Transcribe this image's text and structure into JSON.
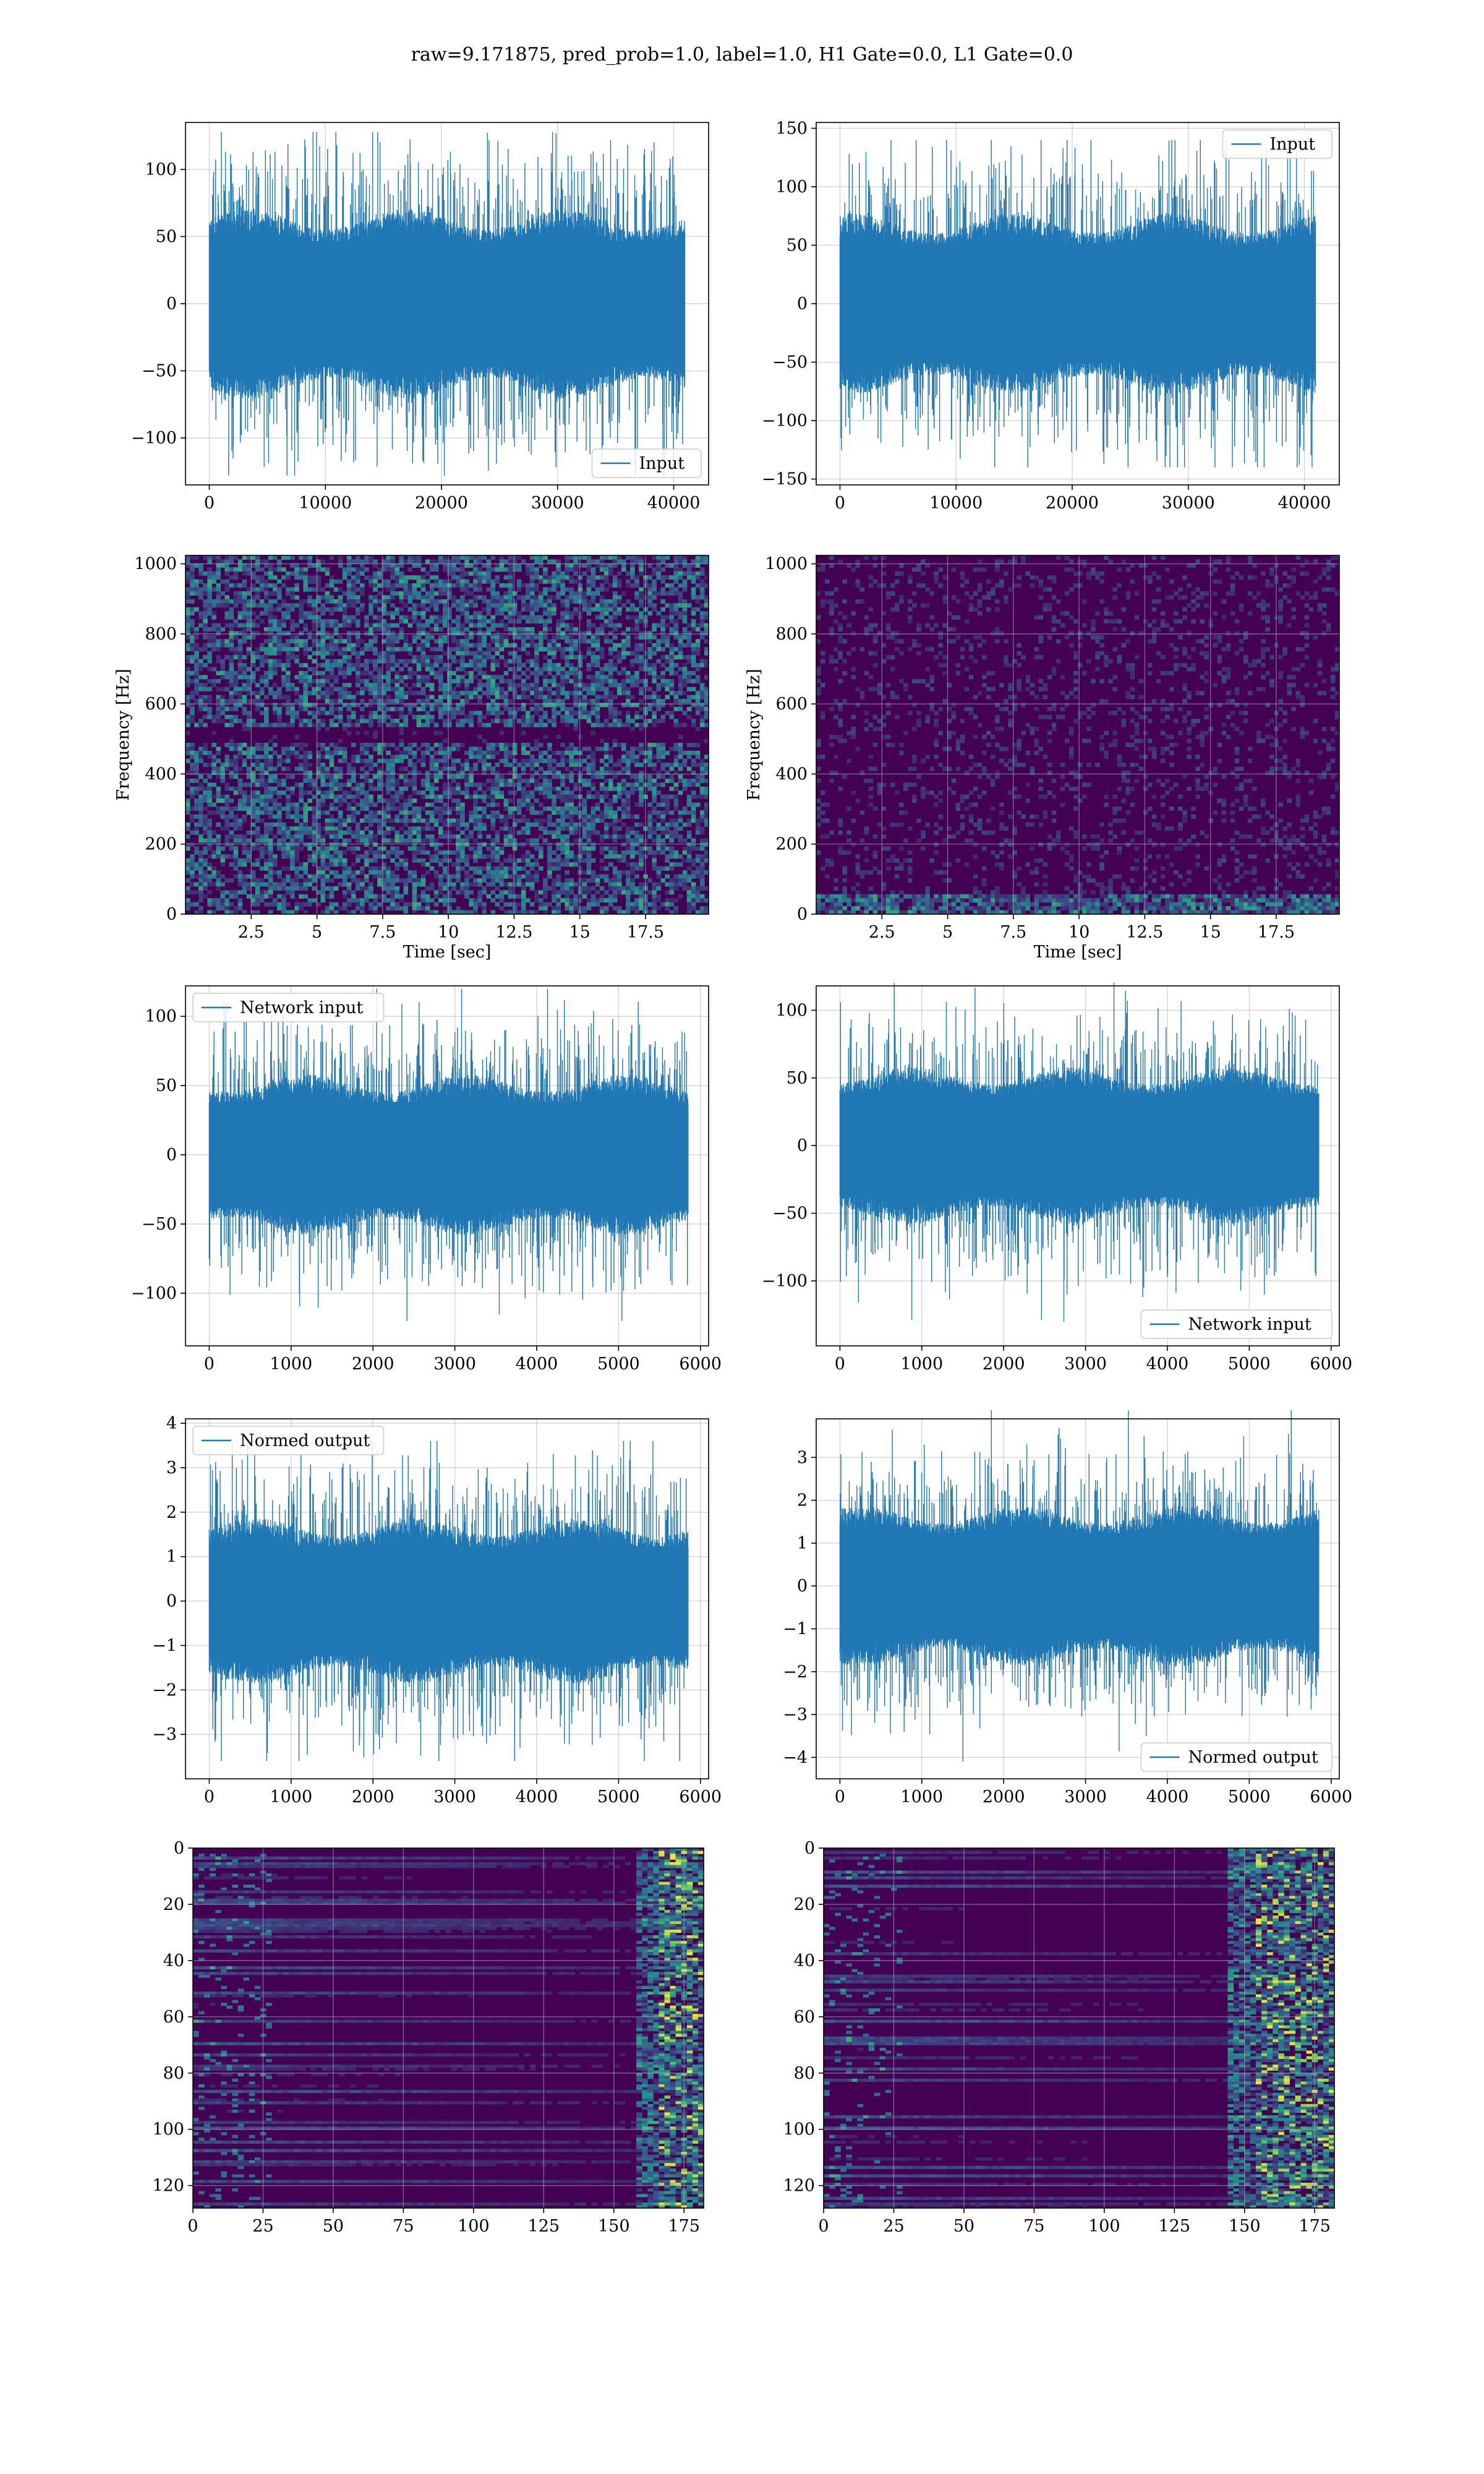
{
  "figure": {
    "suptitle": "raw=9.171875, pred_prob=1.0, label=1.0, H1 Gate=0.0, L1 Gate=0.0"
  },
  "colors": {
    "line": "#1f77b4",
    "grid": "#b0b0b0",
    "viridis_dark": "#440154",
    "viridis_mid": "#21918c",
    "viridis_bright": "#fde725"
  },
  "chart_data": [
    {
      "id": "h1_input",
      "type": "line",
      "title": "",
      "xlabel": "",
      "ylabel": "",
      "xlim": [
        -2048,
        43008
      ],
      "ylim": [
        -135,
        135
      ],
      "xticks": [
        0,
        10000,
        20000,
        30000,
        40000
      ],
      "yticks": [
        -100,
        -50,
        0,
        50,
        100
      ],
      "grid": true,
      "legend": "lower-right",
      "series": [
        {
          "name": "Input",
          "color": "#1f77b4",
          "n_samples": 40960,
          "band": 55,
          "max_abs": 128
        }
      ]
    },
    {
      "id": "l1_input",
      "type": "line",
      "title": "",
      "xlabel": "",
      "ylabel": "",
      "xlim": [
        -2048,
        43008
      ],
      "ylim": [
        -155,
        155
      ],
      "xticks": [
        0,
        10000,
        20000,
        30000,
        40000
      ],
      "yticks": [
        -150,
        -100,
        -50,
        0,
        50,
        100,
        150
      ],
      "grid": true,
      "legend": "upper-right",
      "series": [
        {
          "name": "Input",
          "color": "#1f77b4",
          "n_samples": 40960,
          "band": 60,
          "max_abs": 140
        }
      ]
    },
    {
      "id": "h1_spectrogram",
      "type": "heatmap",
      "title": "",
      "xlabel": "Time [sec]",
      "ylabel": "Frequency [Hz]",
      "xlim": [
        0,
        19.9
      ],
      "ylim": [
        0,
        1024
      ],
      "xticks": [
        2.5,
        5.0,
        7.5,
        10.0,
        12.5,
        15.0,
        17.5
      ],
      "yticks": [
        0,
        200,
        400,
        600,
        800,
        1000
      ],
      "grid": true,
      "colormap": "viridis",
      "intensity": "high-uniform",
      "notes": "dark horizontal lines near 500 Hz"
    },
    {
      "id": "l1_spectrogram",
      "type": "heatmap",
      "title": "",
      "xlabel": "Time [sec]",
      "ylabel": "Frequency [Hz]",
      "xlim": [
        0,
        19.9
      ],
      "ylim": [
        0,
        1024
      ],
      "xticks": [
        2.5,
        5.0,
        7.5,
        10.0,
        12.5,
        15.0,
        17.5
      ],
      "yticks": [
        0,
        200,
        400,
        600,
        800,
        1000
      ],
      "grid": true,
      "colormap": "viridis",
      "intensity": "low, brighter below 50 Hz"
    },
    {
      "id": "h1_network_input",
      "type": "line",
      "title": "",
      "xlabel": "",
      "ylabel": "",
      "xlim": [
        -290,
        6100
      ],
      "ylim": [
        -138,
        122
      ],
      "xticks": [
        0,
        1000,
        2000,
        3000,
        4000,
        5000,
        6000
      ],
      "yticks": [
        -100,
        -50,
        0,
        50,
        100
      ],
      "grid": true,
      "legend": "upper-left",
      "series": [
        {
          "name": "Network input",
          "color": "#1f77b4",
          "n_samples": 5850,
          "band": 45,
          "max_abs": 120
        }
      ]
    },
    {
      "id": "l1_network_input",
      "type": "line",
      "title": "",
      "xlabel": "",
      "ylabel": "",
      "xlim": [
        -290,
        6100
      ],
      "ylim": [
        -148,
        118
      ],
      "xticks": [
        0,
        1000,
        2000,
        3000,
        4000,
        5000,
        6000
      ],
      "yticks": [
        -100,
        -50,
        0,
        50,
        100
      ],
      "grid": true,
      "legend": "lower-right",
      "series": [
        {
          "name": "Network input",
          "color": "#1f77b4",
          "n_samples": 5850,
          "band": 45,
          "max_abs": 130
        }
      ]
    },
    {
      "id": "h1_normed_output",
      "type": "line",
      "title": "",
      "xlabel": "",
      "ylabel": "",
      "xlim": [
        -290,
        6100
      ],
      "ylim": [
        -4.0,
        4.1
      ],
      "xticks": [
        0,
        1000,
        2000,
        3000,
        4000,
        5000,
        6000
      ],
      "yticks": [
        -3,
        -2,
        -1,
        0,
        1,
        2,
        3,
        4
      ],
      "grid": true,
      "legend": "upper-left",
      "series": [
        {
          "name": "Normed output",
          "color": "#1f77b4",
          "n_samples": 5850,
          "band": 1.45,
          "max_abs": 3.6
        }
      ]
    },
    {
      "id": "l1_normed_output",
      "type": "line",
      "title": "",
      "xlabel": "",
      "ylabel": "",
      "xlim": [
        -290,
        6100
      ],
      "ylim": [
        -4.5,
        3.9
      ],
      "xticks": [
        0,
        1000,
        2000,
        3000,
        4000,
        5000,
        6000
      ],
      "yticks": [
        -4,
        -3,
        -2,
        -1,
        0,
        1,
        2,
        3
      ],
      "grid": true,
      "legend": "lower-right",
      "series": [
        {
          "name": "Normed output",
          "color": "#1f77b4",
          "n_samples": 5850,
          "band": 1.45,
          "max_abs": 4.1
        }
      ]
    },
    {
      "id": "h1_feature_map",
      "type": "heatmap",
      "title": "",
      "xlabel": "",
      "ylabel": "",
      "xlim": [
        0,
        182
      ],
      "ylim": [
        128,
        0
      ],
      "xticks": [
        0,
        25,
        50,
        75,
        100,
        125,
        150,
        175
      ],
      "yticks": [
        0,
        20,
        40,
        60,
        80,
        100,
        120
      ],
      "grid": true,
      "colormap": "viridis",
      "notes": "bright activations near x=170-180"
    },
    {
      "id": "l1_feature_map",
      "type": "heatmap",
      "title": "",
      "xlabel": "",
      "ylabel": "",
      "xlim": [
        0,
        182
      ],
      "ylim": [
        128,
        0
      ],
      "xticks": [
        0,
        25,
        50,
        75,
        100,
        125,
        150,
        175
      ],
      "yticks": [
        0,
        20,
        40,
        60,
        80,
        100,
        120
      ],
      "grid": true,
      "colormap": "viridis",
      "notes": "bright activations near x=155-175"
    }
  ]
}
